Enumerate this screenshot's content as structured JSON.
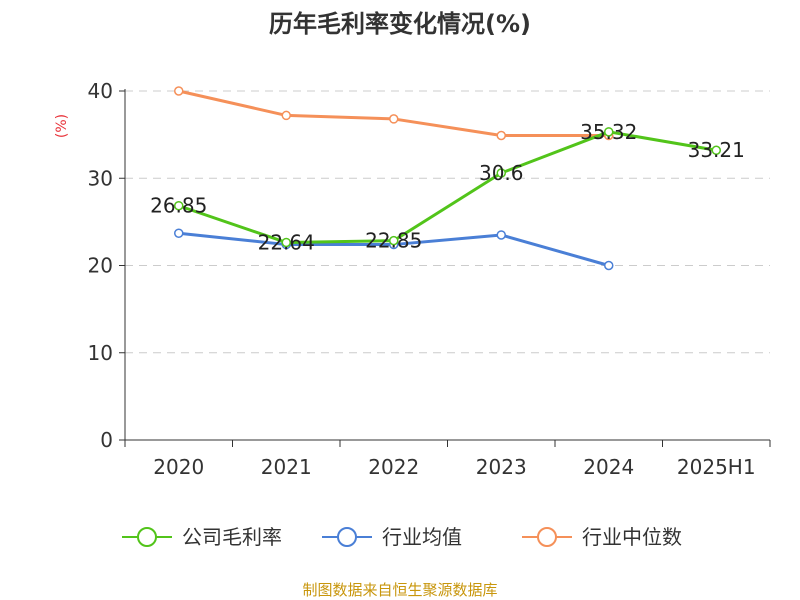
{
  "chart_data": {
    "type": "line",
    "title": "历年毛利率变化情况(%)",
    "ylabel": "(%)",
    "categories": [
      "2020",
      "2021",
      "2022",
      "2023",
      "2024",
      "2025H1"
    ],
    "ylim": [
      0,
      40
    ],
    "yticks": [
      0,
      10,
      20,
      30,
      40
    ],
    "yticks_text": [
      "0",
      "10",
      "20",
      "30",
      "40"
    ],
    "grid": true,
    "legend_position": "bottom",
    "series": [
      {
        "name": "公司毛利率",
        "color": "#52c41a",
        "values": [
          26.85,
          22.64,
          22.85,
          30.6,
          35.32,
          33.21
        ],
        "labels": [
          "26.85",
          "22.64",
          "22.85",
          "30.6",
          "35.32",
          "33.21"
        ]
      },
      {
        "name": "行业均值",
        "color": "#4a7fd6",
        "values": [
          23.7,
          22.4,
          22.4,
          23.5,
          20.0,
          null
        ],
        "labels": []
      },
      {
        "name": "行业中位数",
        "color": "#f59059",
        "values": [
          40.0,
          37.2,
          36.8,
          34.9,
          34.9,
          null
        ],
        "labels": []
      }
    ]
  },
  "ylabel_color": "#e8333a",
  "source": "制图数据来自恒生聚源数据库",
  "source_color": "#c8960c"
}
